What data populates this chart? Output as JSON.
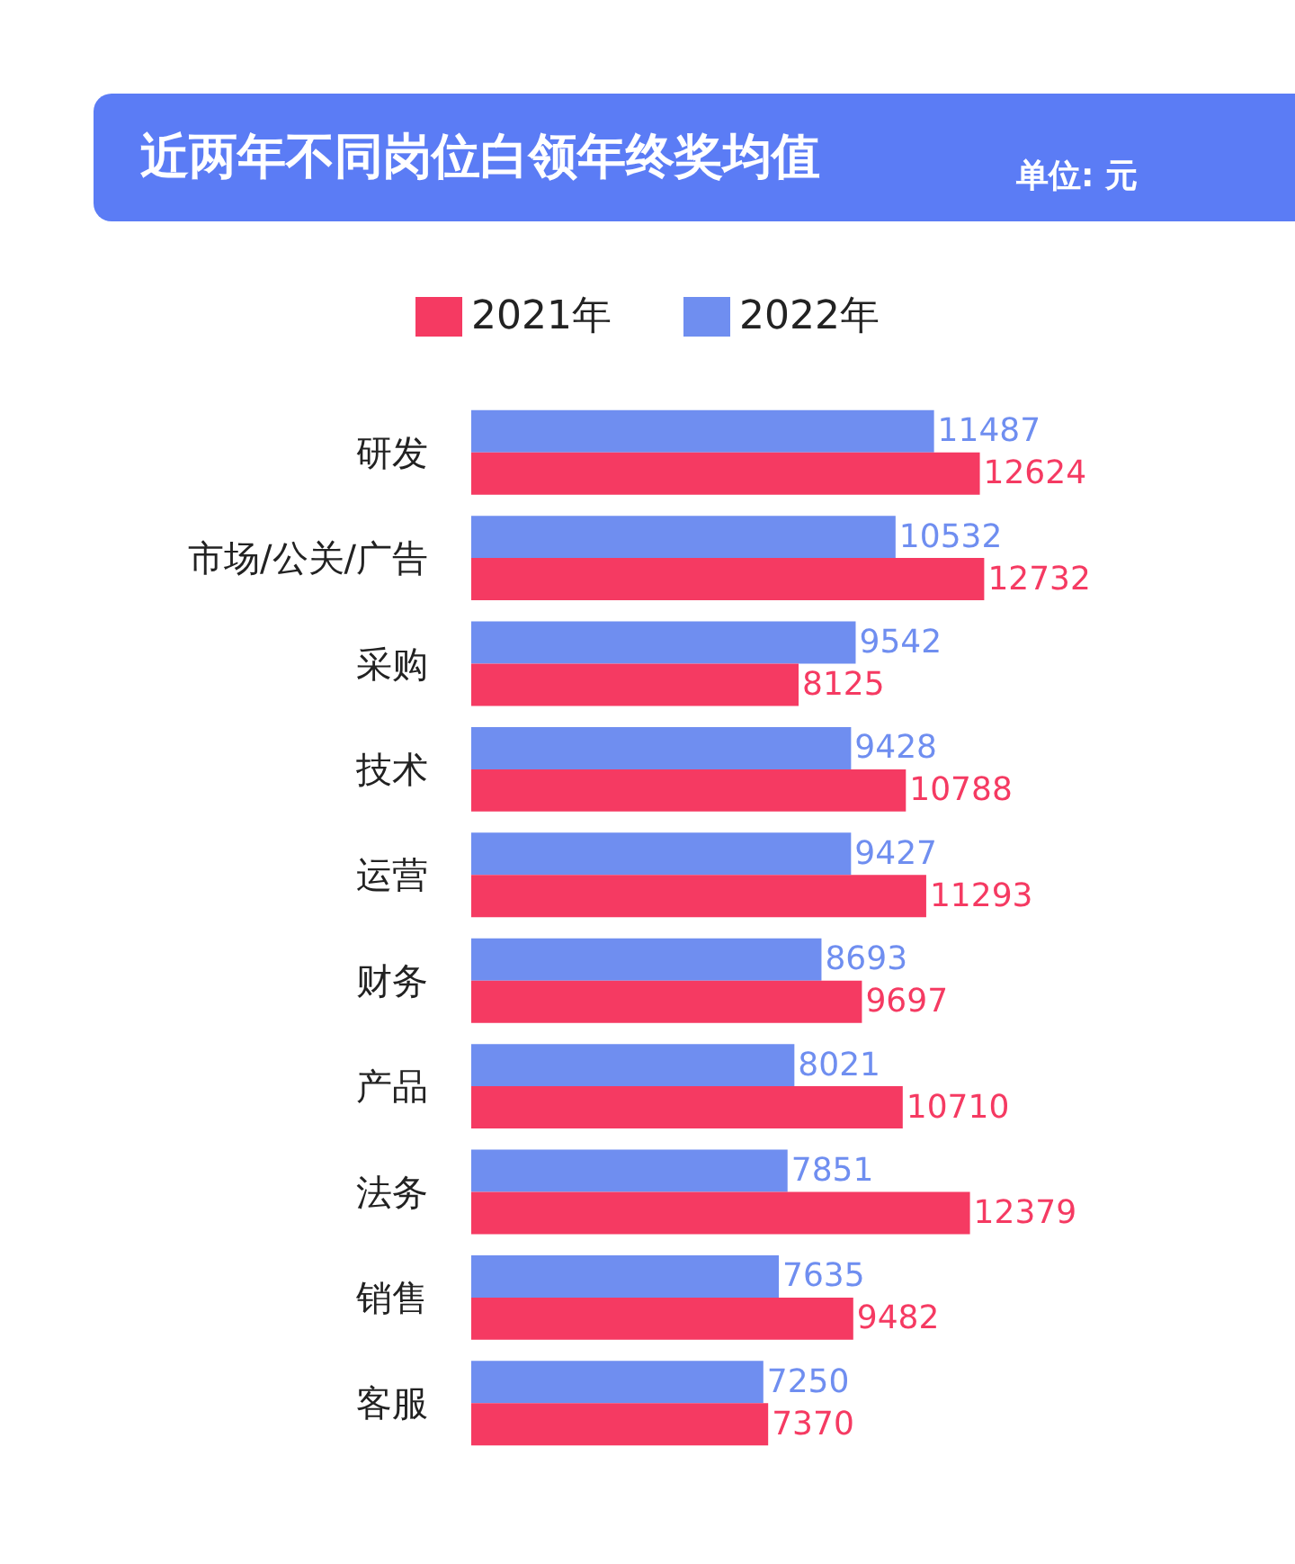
{
  "chart_data": {
    "type": "bar",
    "orientation": "horizontal",
    "title": "近两年不同岗位白领年终奖均值",
    "subtitle": "单位: 元",
    "categories": [
      "研发",
      "市场/公关/广告",
      "采购",
      "技术",
      "运营",
      "财务",
      "产品",
      "法务",
      "销售",
      "客服"
    ],
    "series": [
      {
        "name": "2021年",
        "color": "#f53a62",
        "values": [
          12624,
          12732,
          8125,
          10788,
          11293,
          9697,
          10710,
          12379,
          9482,
          7370
        ]
      },
      {
        "name": "2022年",
        "color": "#6f8ef0",
        "values": [
          11487,
          10532,
          9542,
          9428,
          9427,
          8693,
          8021,
          7851,
          7635,
          7250
        ]
      }
    ],
    "data_labels": true,
    "legend": "top",
    "grid": false,
    "tick_labels": "y"
  }
}
